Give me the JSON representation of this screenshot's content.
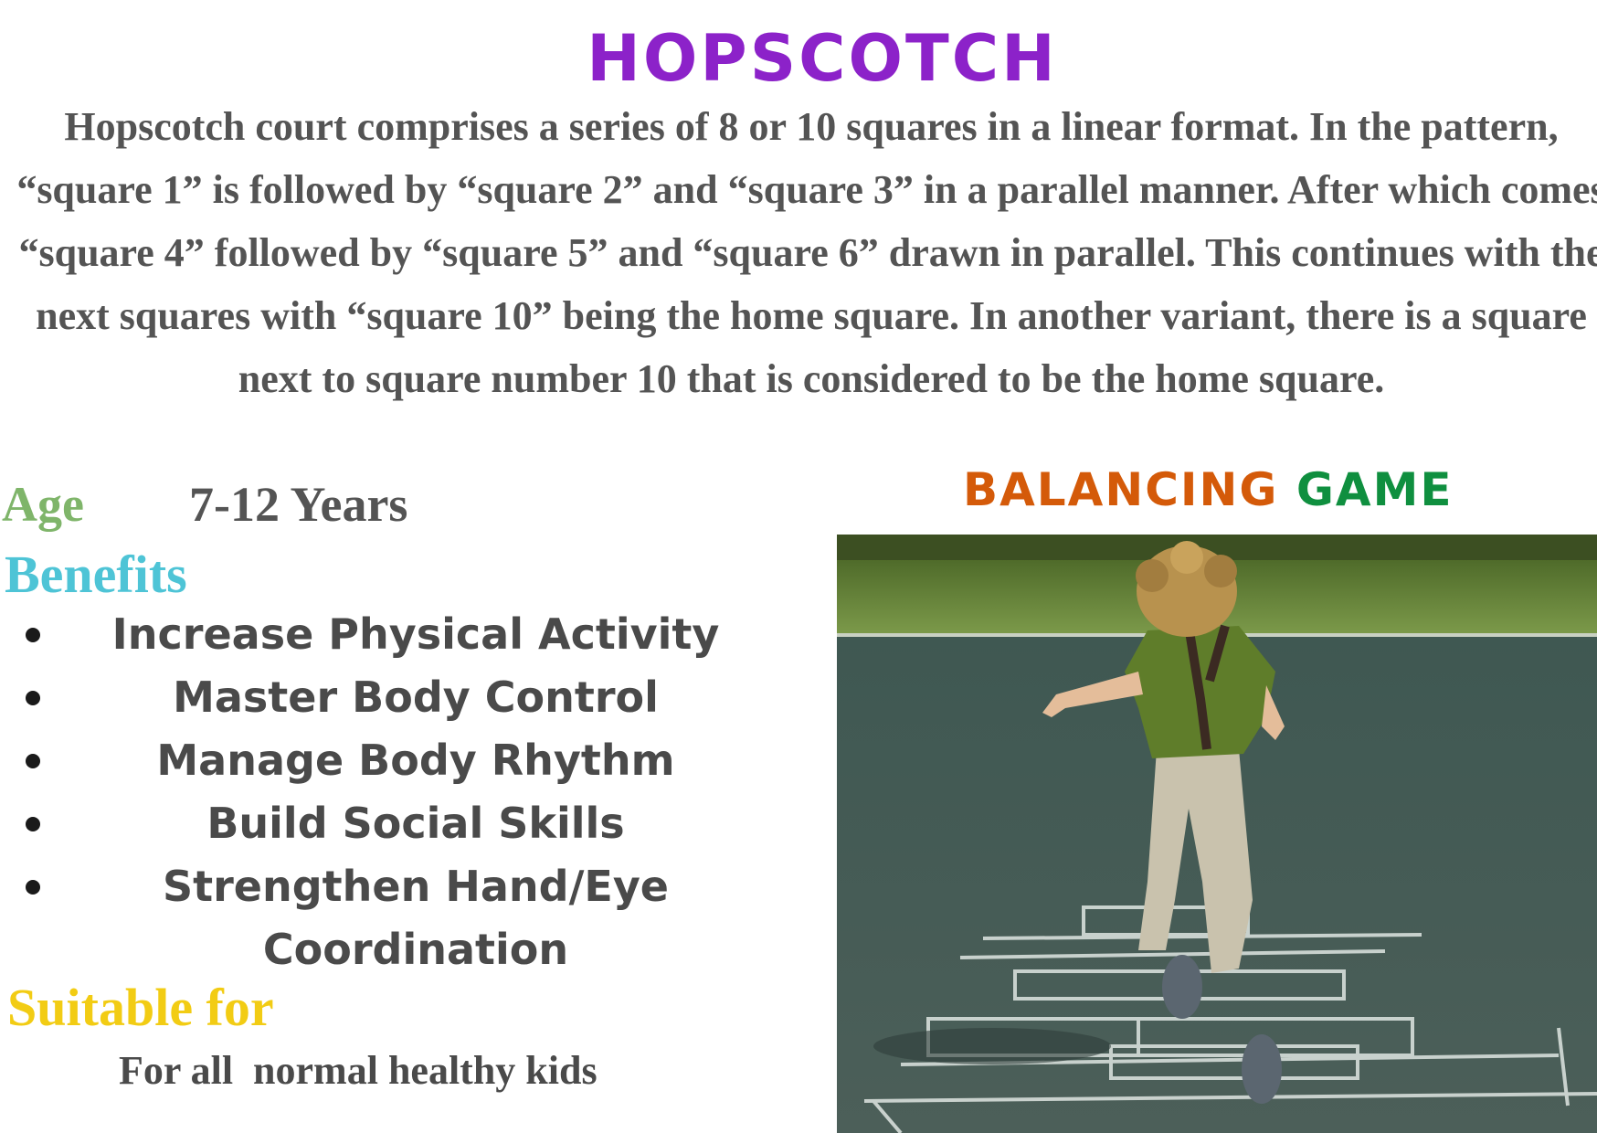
{
  "title": "HOPSCOTCH",
  "description": "Hopscotch court comprises a series of 8 or 10 squares in a linear format. In the pattern, “square 1” is followed by “square 2” and “square 3” in a parallel manner. After which comes “square 4” followed by “square 5” and “square 6” drawn in parallel. This continues with the next squares with “square 10” being the home square. In another variant, there is a square next to square number 10 that is considered to be the home square.",
  "age": {
    "label": "Age",
    "value": "7-12 Years"
  },
  "benefits": {
    "label": "Benefits",
    "items": [
      "Increase Physical Activity",
      "Master Body Control",
      "Manage Body Rhythm",
      "Build Social Skills",
      "Strengthen Hand/Eye Coordination"
    ]
  },
  "suitable": {
    "label": "Suitable for",
    "value": "For all  normal healthy kids"
  },
  "game_type": {
    "word1": "BALANCING",
    "word2": "GAME"
  },
  "colors": {
    "title": "#8c22c9",
    "age_label": "#7fb56a",
    "benefits_label": "#4ec4d6",
    "suitable_label": "#f2cc14",
    "balancing": "#d45a09",
    "game": "#0f8f3f"
  }
}
